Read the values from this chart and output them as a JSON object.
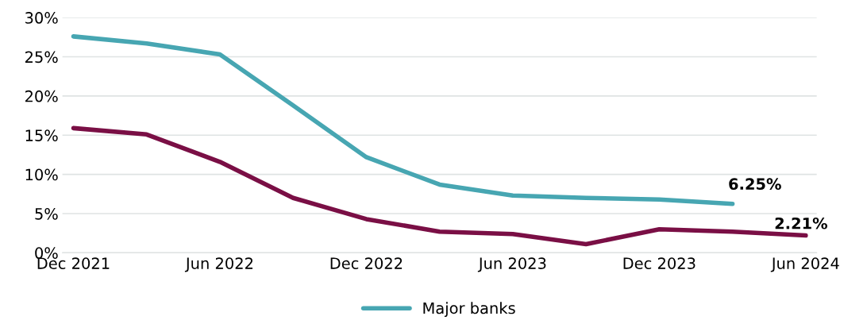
{
  "chart_data": {
    "type": "line",
    "categories": [
      "Dec 2021",
      null,
      "Jun 2022",
      null,
      "Dec 2022",
      null,
      "Jun 2023",
      null,
      "Dec 2023",
      null,
      "Jun 2024"
    ],
    "series": [
      {
        "color": "#7a0f45",
        "values": [
          15.9,
          15.1,
          11.6,
          7.0,
          4.3,
          2.7,
          2.4,
          1.1,
          3.0,
          2.7,
          2.21
        ],
        "value_labels": [
          null,
          null,
          null,
          null,
          null,
          null,
          null,
          null,
          null,
          null,
          "2.21%"
        ]
      },
      {
        "name": "Major banks",
        "color": "#47a6b2",
        "values": [
          27.6,
          26.7,
          25.3,
          18.8,
          12.2,
          8.7,
          7.3,
          7.0,
          6.8,
          6.25,
          null
        ],
        "value_labels": [
          null,
          null,
          null,
          null,
          null,
          null,
          null,
          null,
          null,
          "6.25%",
          null
        ]
      }
    ],
    "ylim": [
      0,
      30
    ],
    "yticks": [
      {
        "value": 0,
        "label": "0%"
      },
      {
        "value": 5,
        "label": "5%"
      },
      {
        "value": 10,
        "label": "10%"
      },
      {
        "value": 15,
        "label": "15%"
      },
      {
        "value": 20,
        "label": "20%"
      },
      {
        "value": 25,
        "label": "25%"
      },
      {
        "value": 30,
        "label": "30%"
      }
    ],
    "grid": "y",
    "legend": "bottom",
    "marker": "none",
    "line_style": "solid"
  }
}
